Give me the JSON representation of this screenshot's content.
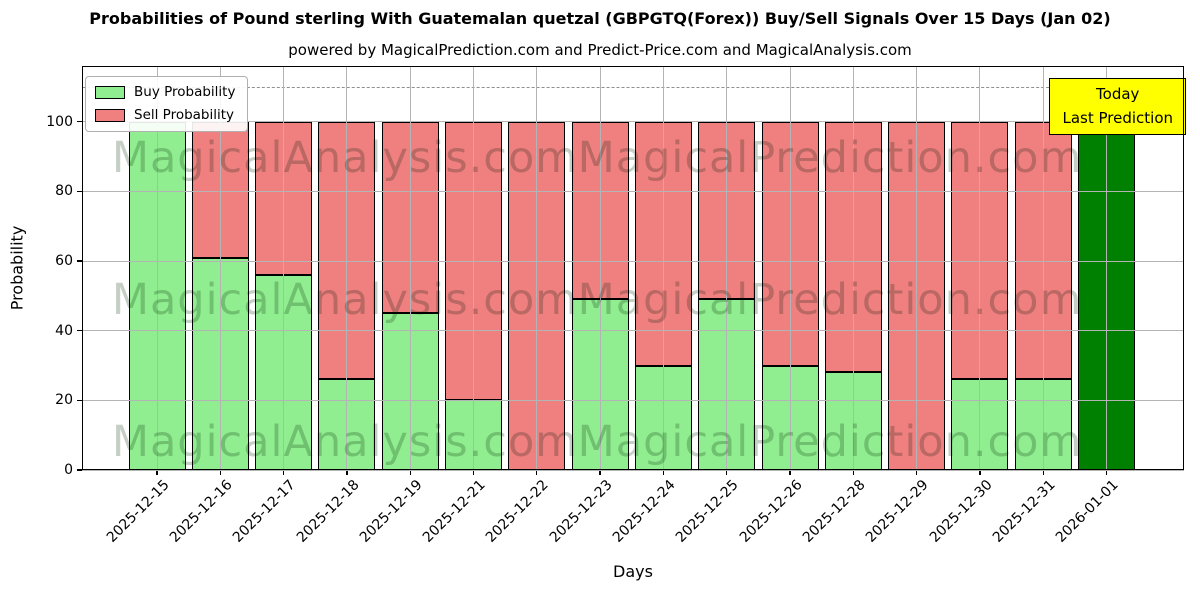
{
  "chart_data": {
    "type": "bar",
    "stacked": true,
    "title": "Probabilities of Pound sterling With Guatemalan quetzal (GBPGTQ(Forex)) Buy/Sell Signals Over 15 Days (Jan 02)",
    "subtitle": "powered by MagicalPrediction.com and Predict-Price.com and MagicalAnalysis.com",
    "xlabel": "Days",
    "ylabel": "Probability",
    "ylim": [
      0,
      116
    ],
    "yticks": [
      0,
      20,
      40,
      60,
      80,
      100
    ],
    "grid": true,
    "dashed_guideline_y": 110,
    "categories": [
      "2025-12-15",
      "2025-12-16",
      "2025-12-17",
      "2025-12-18",
      "2025-12-19",
      "2025-12-21",
      "2025-12-22",
      "2025-12-23",
      "2025-12-24",
      "2025-12-25",
      "2025-12-26",
      "2025-12-28",
      "2025-12-29",
      "2025-12-30",
      "2025-12-31",
      "2026-01-01"
    ],
    "series": [
      {
        "name": "Buy Probability",
        "color": "#90ee90",
        "values": [
          100,
          61,
          56,
          26,
          45,
          20,
          0,
          49,
          30,
          49,
          30,
          28,
          0,
          26,
          26,
          0
        ]
      },
      {
        "name": "Sell Probability",
        "color": "#f08080",
        "values": [
          0,
          39,
          44,
          74,
          55,
          80,
          100,
          51,
          70,
          51,
          70,
          72,
          100,
          74,
          74,
          0
        ]
      },
      {
        "name": "Today Last Prediction",
        "color": "#008000",
        "values": [
          0,
          0,
          0,
          0,
          0,
          0,
          0,
          0,
          0,
          0,
          0,
          0,
          0,
          0,
          0,
          100
        ]
      }
    ],
    "legend": {
      "position": "upper left",
      "items": [
        {
          "label": "Buy Probability",
          "color": "#90ee90"
        },
        {
          "label": "Sell Probability",
          "color": "#f08080"
        }
      ]
    },
    "annotation": {
      "line1": "Today",
      "line2": "Last Prediction",
      "bg": "#ffff00"
    },
    "watermarks": {
      "left": "MagicalAnalysis.com",
      "right": "MagicalPrediction.com",
      "rows": 3
    },
    "colors": {
      "edge": "#000000",
      "grid": "#b4b4b4",
      "dashed": "#8f8f8f"
    }
  }
}
